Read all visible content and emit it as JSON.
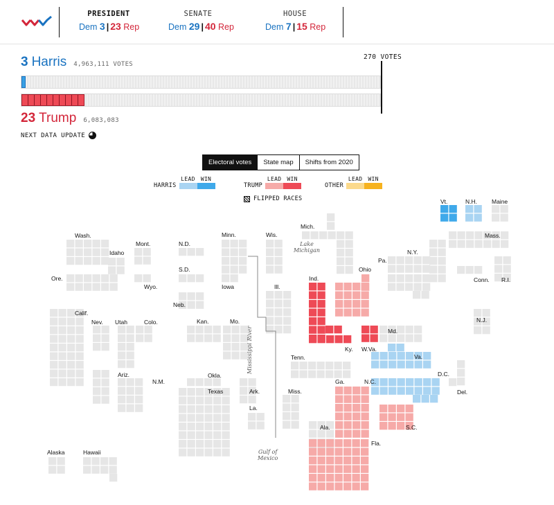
{
  "header": {
    "races": [
      {
        "title": "PRESIDENT",
        "dem_label": "Dem",
        "dem": "3",
        "rep": "23",
        "rep_label": "Rep"
      },
      {
        "title": "SENATE",
        "dem_label": "Dem",
        "dem": "29",
        "rep": "40",
        "rep_label": "Rep"
      },
      {
        "title": "HOUSE",
        "dem_label": "Dem",
        "dem": "7",
        "rep": "15",
        "rep_label": "Rep"
      }
    ]
  },
  "tally": {
    "harris": {
      "ev": "3",
      "name": "Harris",
      "votes": "4,963,111 VOTES"
    },
    "trump": {
      "ev": "23",
      "name": "Trump",
      "votes": "6,083,083"
    },
    "threshold_label": "270 VOTES",
    "harris_progress_ev": 3,
    "trump_progress_ev": 23,
    "total_ev": 538,
    "update_label": "NEXT DATA UPDATE"
  },
  "tabs": [
    "Electoral votes",
    "State map",
    "Shifts from 2020"
  ],
  "active_tab": 0,
  "legend": {
    "harris": {
      "name": "HARRIS",
      "lead": "LEAD",
      "win": "WIN",
      "lead_color": "#a9d4f2",
      "win_color": "#3fa9ea"
    },
    "trump": {
      "name": "TRUMP",
      "lead": "LEAD",
      "win": "WIN",
      "lead_color": "#f6aaa8",
      "win_color": "#ee4a56"
    },
    "other": {
      "name": "OTHER",
      "lead": "LEAD",
      "win": "WIN",
      "lead_color": "#fbd98b",
      "win_color": "#f6b21e"
    },
    "flipped": "FLIPPED RACES"
  },
  "colors": {
    "grid_gray": "#e6e6e6",
    "dem_blue": "#1a73c1",
    "rep_red": "#d3263a"
  },
  "map": {
    "state_labels": [
      "Vt.",
      "N.H.",
      "Maine",
      "Mich.",
      "Wash.",
      "Mont.",
      "N.D.",
      "Minn.",
      "Wis.",
      "Mass.",
      "Idaho",
      "N.Y.",
      "Pa.",
      "Ohio",
      "Ore.",
      "Wyo.",
      "S.D.",
      "Iowa",
      "Ill.",
      "Ind.",
      "Conn.",
      "R.I.",
      "Neb.",
      "Calif.",
      "Nev.",
      "Utah",
      "Colo.",
      "Kan.",
      "Mo.",
      "Md.",
      "N.J.",
      "Ky.",
      "W.Va.",
      "Tenn.",
      "Va.",
      "Ariz.",
      "N.M.",
      "Okla.",
      "Texas",
      "Ark.",
      "La.",
      "Miss.",
      "Ga.",
      "Ala.",
      "N.C.",
      "S.C.",
      "D.C.",
      "Del.",
      "Fla.",
      "Alaska",
      "Hawaii"
    ],
    "lake_label": "Lake\nMichigan",
    "river_label": "Mississippi River",
    "gulf_label": "Gulf of\nMexico"
  }
}
